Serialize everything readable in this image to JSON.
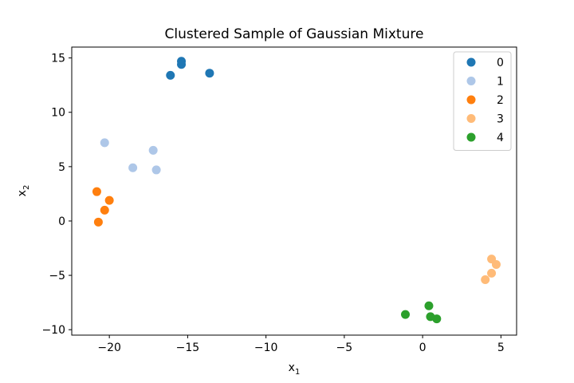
{
  "chart_data": {
    "type": "scatter",
    "title": "Clustered Sample of Gaussian Mixture",
    "xlabel": {
      "base": "x",
      "sub": "1"
    },
    "ylabel": {
      "base": "x",
      "sub": "2"
    },
    "xlim": [
      -22.4,
      6
    ],
    "ylim": [
      -10.5,
      16
    ],
    "xticks": [
      -20,
      -15,
      -10,
      -5,
      0,
      5
    ],
    "xtick_labels": [
      "−20",
      "−15",
      "−10",
      "−5",
      "0",
      "5"
    ],
    "yticks": [
      -10,
      -5,
      0,
      5,
      10,
      15
    ],
    "ytick_labels": [
      "−10",
      "−5",
      "0",
      "5",
      "10",
      "15"
    ],
    "grid": false,
    "legend_position": "top-right",
    "series": [
      {
        "name": "0",
        "color": "#1f77b4",
        "points": [
          [
            -15.4,
            14.7
          ],
          [
            -15.4,
            14.4
          ],
          [
            -16.1,
            13.4
          ],
          [
            -13.6,
            13.6
          ]
        ]
      },
      {
        "name": "1",
        "color": "#aec7e8",
        "points": [
          [
            -20.3,
            7.2
          ],
          [
            -17.2,
            6.5
          ],
          [
            -18.5,
            4.9
          ],
          [
            -17.0,
            4.7
          ]
        ]
      },
      {
        "name": "2",
        "color": "#ff7f0e",
        "points": [
          [
            -20.8,
            2.7
          ],
          [
            -20.0,
            1.9
          ],
          [
            -20.3,
            1.0
          ],
          [
            -20.7,
            -0.1
          ]
        ]
      },
      {
        "name": "3",
        "color": "#ffbb78",
        "points": [
          [
            4.4,
            -3.5
          ],
          [
            4.7,
            -4.0
          ],
          [
            4.4,
            -4.8
          ],
          [
            4.0,
            -5.4
          ]
        ]
      },
      {
        "name": "4",
        "color": "#2ca02c",
        "points": [
          [
            0.4,
            -7.8
          ],
          [
            -1.1,
            -8.6
          ],
          [
            0.5,
            -8.8
          ],
          [
            0.9,
            -9.0
          ]
        ]
      }
    ]
  }
}
